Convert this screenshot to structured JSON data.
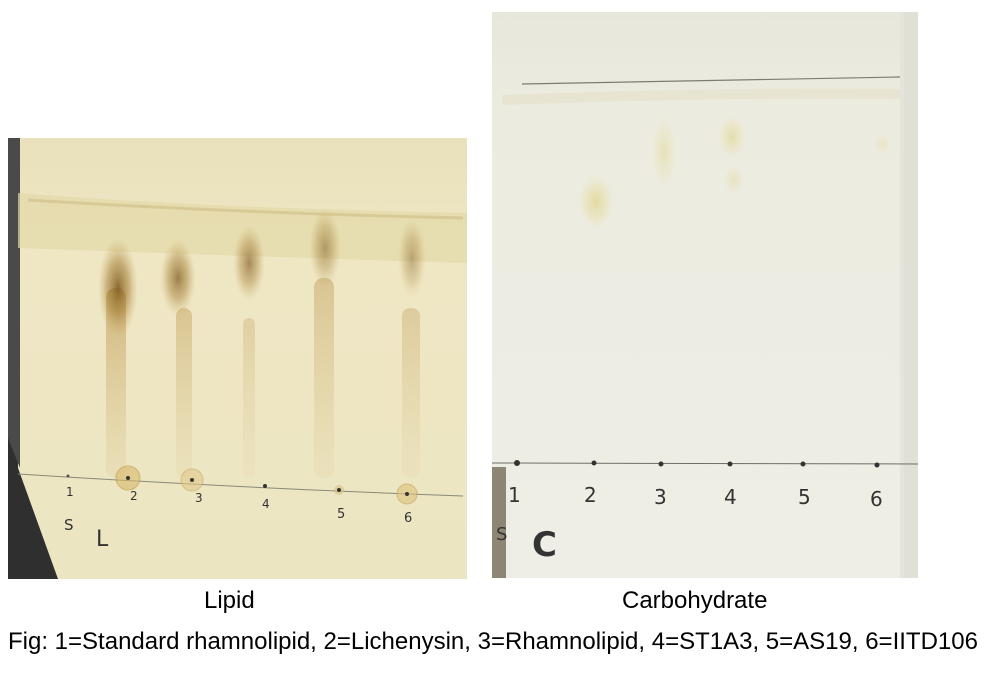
{
  "panels": {
    "lipid": {
      "caption": "Lipid",
      "plate_label": "L",
      "corner_mark": "S",
      "lane_numbers": [
        "1",
        "2",
        "3",
        "4",
        "5",
        "6"
      ]
    },
    "carbohydrate": {
      "caption": "Carbohydrate",
      "plate_label": "C",
      "corner_mark": "S",
      "lane_numbers": [
        "1",
        "2",
        "3",
        "4",
        "5",
        "6"
      ]
    }
  },
  "figure_caption": "Fig: 1=Standard rhamnolipid, 2=Lichenysin, 3=Rhamnolipid, 4=ST1A3, 5=AS19, 6=IITD106",
  "colors": {
    "lipid_plate": "#ece5c2",
    "lipid_spot": "#8a6420",
    "carb_plate": "#eeeee5",
    "carb_spot": "#d8d8a0"
  }
}
